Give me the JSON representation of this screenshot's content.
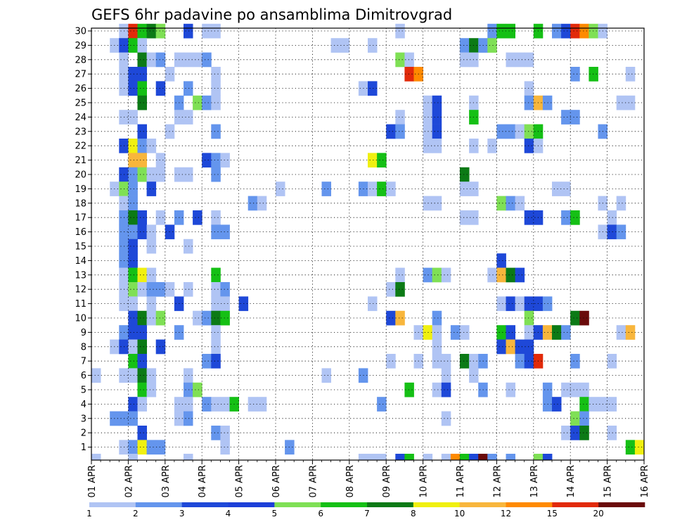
{
  "chart_data": {
    "type": "heatmap",
    "title": "GEFS 6hr padavine po ansamblima Dimitrovgrad",
    "y_labels": [
      "1",
      "2",
      "3",
      "4",
      "5",
      "6",
      "7",
      "8",
      "9",
      "10",
      "11",
      "12",
      "13",
      "14",
      "15",
      "16",
      "17",
      "18",
      "19",
      "20",
      "21",
      "22",
      "23",
      "24",
      "25",
      "26",
      "27",
      "28",
      "29",
      "30"
    ],
    "x_labels": [
      "01 APR",
      "02 APR",
      "03 APR",
      "04 APR",
      "05 APR",
      "06 APR",
      "07 APR",
      "08 APR",
      "09 APR",
      "10 APR",
      "11 APR",
      "12 APR",
      "13 APR",
      "14 APR",
      "15 APR",
      "16 APR"
    ],
    "x_steps_per_day": 4,
    "x_steps": 60,
    "colorbar": {
      "labels": [
        "1",
        "2",
        "3",
        "4",
        "5",
        "6",
        "7",
        "8",
        "10",
        "12",
        "15",
        "20"
      ],
      "colors": [
        "#b0c4f4",
        "#6495ed",
        "#1e48d8",
        "#1d3fd8",
        "#7fe055",
        "#15c015",
        "#0c7a16",
        "#f0f010",
        "#f8b63c",
        "#ff8a00",
        "#e22a0a",
        "#6a0a0a"
      ]
    },
    "color_scale_hex": {
      "1": "#b0c4f4",
      "2": "#6495ed",
      "3": "#1e48d8",
      "5": "#7fe055",
      "6": "#15c015",
      "7": "#0c7a16",
      "8": "#f0f010",
      "10": "#f8b63c",
      "12": "#ff8a00",
      "15": "#e22a0a",
      "20": "#6a0a0a"
    },
    "cells": [
      [
        30,
        3,
        1
      ],
      [
        30,
        4,
        15
      ],
      [
        30,
        5,
        6
      ],
      [
        30,
        6,
        7
      ],
      [
        30,
        7,
        5
      ],
      [
        30,
        10,
        3
      ],
      [
        30,
        12,
        1
      ],
      [
        30,
        13,
        1
      ],
      [
        30,
        33,
        1
      ],
      [
        30,
        43,
        2
      ],
      [
        30,
        44,
        6
      ],
      [
        30,
        45,
        6
      ],
      [
        30,
        48,
        6
      ],
      [
        30,
        50,
        2
      ],
      [
        30,
        51,
        3
      ],
      [
        30,
        52,
        15
      ],
      [
        30,
        53,
        12
      ],
      [
        30,
        54,
        5
      ],
      [
        30,
        55,
        1
      ],
      [
        29,
        2,
        1
      ],
      [
        29,
        3,
        3
      ],
      [
        29,
        4,
        6
      ],
      [
        29,
        5,
        1
      ],
      [
        29,
        26,
        1
      ],
      [
        29,
        27,
        1
      ],
      [
        29,
        30,
        1
      ],
      [
        29,
        40,
        2
      ],
      [
        29,
        41,
        7
      ],
      [
        29,
        42,
        2
      ],
      [
        29,
        43,
        5
      ],
      [
        28,
        3,
        1
      ],
      [
        28,
        5,
        7
      ],
      [
        28,
        6,
        1
      ],
      [
        28,
        7,
        2
      ],
      [
        28,
        9,
        1
      ],
      [
        28,
        10,
        1
      ],
      [
        28,
        11,
        1
      ],
      [
        28,
        12,
        2
      ],
      [
        28,
        33,
        5
      ],
      [
        28,
        34,
        1
      ],
      [
        28,
        40,
        1
      ],
      [
        28,
        41,
        1
      ],
      [
        28,
        45,
        1
      ],
      [
        28,
        46,
        1
      ],
      [
        28,
        47,
        1
      ],
      [
        27,
        3,
        1
      ],
      [
        27,
        4,
        3
      ],
      [
        27,
        5,
        3
      ],
      [
        27,
        8,
        1
      ],
      [
        27,
        13,
        1
      ],
      [
        27,
        34,
        15
      ],
      [
        27,
        35,
        12
      ],
      [
        27,
        52,
        2
      ],
      [
        27,
        54,
        6
      ],
      [
        27,
        58,
        1
      ],
      [
        26,
        3,
        1
      ],
      [
        26,
        4,
        3
      ],
      [
        26,
        5,
        6
      ],
      [
        26,
        7,
        3
      ],
      [
        26,
        10,
        2
      ],
      [
        26,
        13,
        1
      ],
      [
        26,
        29,
        1
      ],
      [
        26,
        30,
        3
      ],
      [
        26,
        47,
        1
      ],
      [
        25,
        5,
        7
      ],
      [
        25,
        9,
        2
      ],
      [
        25,
        11,
        5
      ],
      [
        25,
        12,
        2
      ],
      [
        25,
        13,
        1
      ],
      [
        25,
        36,
        1
      ],
      [
        25,
        37,
        3
      ],
      [
        25,
        41,
        1
      ],
      [
        25,
        47,
        2
      ],
      [
        25,
        48,
        10
      ],
      [
        25,
        49,
        2
      ],
      [
        25,
        57,
        1
      ],
      [
        25,
        58,
        1
      ],
      [
        24,
        3,
        1
      ],
      [
        24,
        4,
        1
      ],
      [
        24,
        9,
        1
      ],
      [
        24,
        10,
        1
      ],
      [
        24,
        33,
        1
      ],
      [
        24,
        36,
        1
      ],
      [
        24,
        37,
        3
      ],
      [
        24,
        41,
        6
      ],
      [
        24,
        51,
        2
      ],
      [
        24,
        52,
        2
      ],
      [
        23,
        5,
        3
      ],
      [
        23,
        8,
        1
      ],
      [
        23,
        13,
        2
      ],
      [
        23,
        32,
        3
      ],
      [
        23,
        33,
        2
      ],
      [
        23,
        36,
        1
      ],
      [
        23,
        37,
        3
      ],
      [
        23,
        44,
        2
      ],
      [
        23,
        45,
        2
      ],
      [
        23,
        46,
        1
      ],
      [
        23,
        47,
        5
      ],
      [
        23,
        48,
        6
      ],
      [
        23,
        55,
        2
      ],
      [
        22,
        3,
        3
      ],
      [
        22,
        4,
        8
      ],
      [
        22,
        5,
        2
      ],
      [
        22,
        6,
        1
      ],
      [
        22,
        36,
        1
      ],
      [
        22,
        37,
        1
      ],
      [
        22,
        41,
        1
      ],
      [
        22,
        43,
        1
      ],
      [
        22,
        47,
        3
      ],
      [
        22,
        48,
        1
      ],
      [
        21,
        4,
        10
      ],
      [
        21,
        5,
        10
      ],
      [
        21,
        7,
        1
      ],
      [
        21,
        12,
        3
      ],
      [
        21,
        13,
        2
      ],
      [
        21,
        14,
        1
      ],
      [
        21,
        30,
        8
      ],
      [
        21,
        31,
        6
      ],
      [
        20,
        3,
        3
      ],
      [
        20,
        4,
        2
      ],
      [
        20,
        5,
        5
      ],
      [
        20,
        6,
        1
      ],
      [
        20,
        7,
        1
      ],
      [
        20,
        9,
        1
      ],
      [
        20,
        10,
        1
      ],
      [
        20,
        13,
        2
      ],
      [
        20,
        40,
        7
      ],
      [
        19,
        2,
        1
      ],
      [
        19,
        3,
        5
      ],
      [
        19,
        4,
        2
      ],
      [
        19,
        6,
        3
      ],
      [
        19,
        20,
        1
      ],
      [
        19,
        25,
        2
      ],
      [
        19,
        29,
        2
      ],
      [
        19,
        30,
        1
      ],
      [
        19,
        31,
        6
      ],
      [
        19,
        32,
        1
      ],
      [
        19,
        40,
        1
      ],
      [
        19,
        41,
        1
      ],
      [
        19,
        50,
        1
      ],
      [
        19,
        51,
        1
      ],
      [
        18,
        3,
        1
      ],
      [
        18,
        4,
        2
      ],
      [
        18,
        17,
        2
      ],
      [
        18,
        18,
        1
      ],
      [
        18,
        36,
        1
      ],
      [
        18,
        37,
        1
      ],
      [
        18,
        44,
        5
      ],
      [
        18,
        45,
        2
      ],
      [
        18,
        46,
        1
      ],
      [
        18,
        55,
        1
      ],
      [
        18,
        57,
        1
      ],
      [
        17,
        3,
        2
      ],
      [
        17,
        4,
        7
      ],
      [
        17,
        5,
        3
      ],
      [
        17,
        7,
        1
      ],
      [
        17,
        9,
        2
      ],
      [
        17,
        11,
        3
      ],
      [
        17,
        13,
        1
      ],
      [
        17,
        40,
        1
      ],
      [
        17,
        41,
        1
      ],
      [
        17,
        47,
        3
      ],
      [
        17,
        48,
        3
      ],
      [
        17,
        51,
        2
      ],
      [
        17,
        52,
        6
      ],
      [
        17,
        56,
        1
      ],
      [
        16,
        3,
        2
      ],
      [
        16,
        4,
        2
      ],
      [
        16,
        5,
        3
      ],
      [
        16,
        6,
        1
      ],
      [
        16,
        8,
        3
      ],
      [
        16,
        13,
        2
      ],
      [
        16,
        14,
        2
      ],
      [
        16,
        55,
        1
      ],
      [
        16,
        56,
        3
      ],
      [
        16,
        57,
        2
      ],
      [
        15,
        3,
        2
      ],
      [
        15,
        4,
        3
      ],
      [
        15,
        6,
        1
      ],
      [
        15,
        10,
        1
      ],
      [
        14,
        3,
        2
      ],
      [
        14,
        4,
        3
      ],
      [
        14,
        44,
        3
      ],
      [
        13,
        3,
        1
      ],
      [
        13,
        4,
        6
      ],
      [
        13,
        5,
        8
      ],
      [
        13,
        6,
        1
      ],
      [
        13,
        13,
        6
      ],
      [
        13,
        33,
        1
      ],
      [
        13,
        36,
        2
      ],
      [
        13,
        37,
        5
      ],
      [
        13,
        38,
        1
      ],
      [
        13,
        43,
        1
      ],
      [
        13,
        44,
        10
      ],
      [
        13,
        45,
        7
      ],
      [
        13,
        46,
        3
      ],
      [
        12,
        3,
        1
      ],
      [
        12,
        4,
        5
      ],
      [
        12,
        5,
        1
      ],
      [
        12,
        6,
        2
      ],
      [
        12,
        7,
        2
      ],
      [
        12,
        8,
        1
      ],
      [
        12,
        10,
        1
      ],
      [
        12,
        13,
        1
      ],
      [
        12,
        14,
        2
      ],
      [
        12,
        32,
        1
      ],
      [
        12,
        33,
        7
      ],
      [
        11,
        3,
        1
      ],
      [
        11,
        4,
        1
      ],
      [
        11,
        6,
        1
      ],
      [
        11,
        9,
        3
      ],
      [
        11,
        13,
        1
      ],
      [
        11,
        14,
        1
      ],
      [
        11,
        16,
        3
      ],
      [
        11,
        30,
        1
      ],
      [
        11,
        44,
        1
      ],
      [
        11,
        45,
        3
      ],
      [
        11,
        46,
        1
      ],
      [
        11,
        47,
        3
      ],
      [
        11,
        48,
        3
      ],
      [
        11,
        49,
        2
      ],
      [
        10,
        4,
        3
      ],
      [
        10,
        5,
        7
      ],
      [
        10,
        6,
        1
      ],
      [
        10,
        7,
        5
      ],
      [
        10,
        11,
        1
      ],
      [
        10,
        12,
        2
      ],
      [
        10,
        13,
        7
      ],
      [
        10,
        14,
        6
      ],
      [
        10,
        32,
        3
      ],
      [
        10,
        33,
        10
      ],
      [
        10,
        37,
        2
      ],
      [
        10,
        47,
        5
      ],
      [
        10,
        52,
        7
      ],
      [
        10,
        53,
        20
      ],
      [
        9,
        3,
        2
      ],
      [
        9,
        4,
        3
      ],
      [
        9,
        5,
        3
      ],
      [
        9,
        9,
        2
      ],
      [
        9,
        13,
        1
      ],
      [
        9,
        35,
        1
      ],
      [
        9,
        36,
        8
      ],
      [
        9,
        37,
        1
      ],
      [
        9,
        39,
        2
      ],
      [
        9,
        40,
        1
      ],
      [
        9,
        44,
        6
      ],
      [
        9,
        45,
        3
      ],
      [
        9,
        47,
        1
      ],
      [
        9,
        48,
        3
      ],
      [
        9,
        49,
        10
      ],
      [
        9,
        50,
        7
      ],
      [
        9,
        51,
        2
      ],
      [
        9,
        57,
        1
      ],
      [
        9,
        58,
        10
      ],
      [
        8,
        2,
        1
      ],
      [
        8,
        3,
        3
      ],
      [
        8,
        4,
        1
      ],
      [
        8,
        5,
        7
      ],
      [
        8,
        7,
        3
      ],
      [
        8,
        13,
        1
      ],
      [
        8,
        37,
        1
      ],
      [
        8,
        44,
        3
      ],
      [
        8,
        45,
        10
      ],
      [
        8,
        46,
        3
      ],
      [
        8,
        47,
        3
      ],
      [
        7,
        4,
        6
      ],
      [
        7,
        5,
        3
      ],
      [
        7,
        12,
        2
      ],
      [
        7,
        13,
        3
      ],
      [
        7,
        32,
        1
      ],
      [
        7,
        35,
        1
      ],
      [
        7,
        37,
        1
      ],
      [
        7,
        38,
        1
      ],
      [
        7,
        40,
        7
      ],
      [
        7,
        41,
        1
      ],
      [
        7,
        42,
        2
      ],
      [
        7,
        46,
        2
      ],
      [
        7,
        47,
        3
      ],
      [
        7,
        48,
        15
      ],
      [
        7,
        52,
        2
      ],
      [
        7,
        56,
        1
      ],
      [
        6,
        0,
        1
      ],
      [
        6,
        3,
        1
      ],
      [
        6,
        4,
        1
      ],
      [
        6,
        5,
        7
      ],
      [
        6,
        6,
        1
      ],
      [
        6,
        10,
        1
      ],
      [
        6,
        25,
        1
      ],
      [
        6,
        29,
        2
      ],
      [
        6,
        38,
        1
      ],
      [
        6,
        41,
        1
      ],
      [
        5,
        5,
        6
      ],
      [
        5,
        6,
        1
      ],
      [
        5,
        10,
        2
      ],
      [
        5,
        11,
        5
      ],
      [
        5,
        34,
        6
      ],
      [
        5,
        37,
        1
      ],
      [
        5,
        38,
        3
      ],
      [
        5,
        42,
        2
      ],
      [
        5,
        45,
        1
      ],
      [
        5,
        49,
        2
      ],
      [
        5,
        51,
        1
      ],
      [
        5,
        52,
        1
      ],
      [
        5,
        53,
        1
      ],
      [
        4,
        4,
        3
      ],
      [
        4,
        5,
        1
      ],
      [
        4,
        9,
        1
      ],
      [
        4,
        10,
        1
      ],
      [
        4,
        12,
        2
      ],
      [
        4,
        13,
        1
      ],
      [
        4,
        14,
        1
      ],
      [
        4,
        15,
        6
      ],
      [
        4,
        17,
        1
      ],
      [
        4,
        18,
        1
      ],
      [
        4,
        31,
        2
      ],
      [
        4,
        49,
        2
      ],
      [
        4,
        50,
        3
      ],
      [
        4,
        53,
        6
      ],
      [
        4,
        54,
        1
      ],
      [
        4,
        55,
        1
      ],
      [
        4,
        56,
        1
      ],
      [
        3,
        2,
        2
      ],
      [
        3,
        3,
        2
      ],
      [
        3,
        4,
        2
      ],
      [
        3,
        9,
        1
      ],
      [
        3,
        10,
        2
      ],
      [
        3,
        38,
        1
      ],
      [
        3,
        52,
        5
      ],
      [
        3,
        53,
        2
      ],
      [
        2,
        5,
        3
      ],
      [
        2,
        13,
        2
      ],
      [
        2,
        14,
        1
      ],
      [
        2,
        51,
        1
      ],
      [
        2,
        52,
        3
      ],
      [
        2,
        53,
        7
      ],
      [
        2,
        56,
        1
      ],
      [
        1,
        3,
        1
      ],
      [
        1,
        4,
        2
      ],
      [
        1,
        5,
        8
      ],
      [
        1,
        6,
        2
      ],
      [
        1,
        7,
        2
      ],
      [
        1,
        14,
        1
      ],
      [
        1,
        21,
        2
      ],
      [
        1,
        58,
        6
      ],
      [
        1,
        59,
        8
      ]
    ],
    "bottom_strip": [
      [
        0,
        1
      ],
      [
        4,
        1
      ],
      [
        10,
        1
      ],
      [
        29,
        1
      ],
      [
        30,
        1
      ],
      [
        31,
        1
      ],
      [
        33,
        3
      ],
      [
        34,
        6
      ],
      [
        36,
        1
      ],
      [
        38,
        1
      ],
      [
        39,
        12
      ],
      [
        40,
        6
      ],
      [
        41,
        3
      ],
      [
        42,
        20
      ],
      [
        43,
        2
      ],
      [
        45,
        2
      ],
      [
        48,
        5
      ],
      [
        49,
        3
      ]
    ]
  }
}
